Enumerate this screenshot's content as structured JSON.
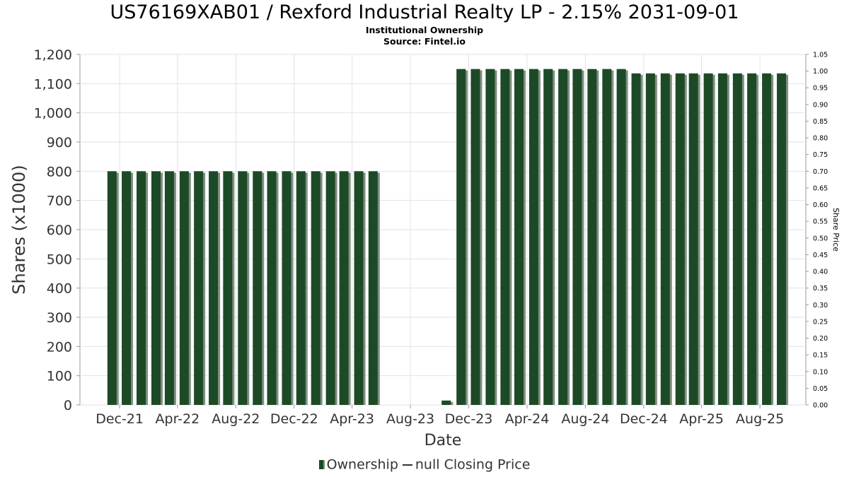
{
  "header": {
    "title": "US76169XAB01 / Rexford Industrial Realty LP - 2.15% 2031-09-01",
    "subtitle1": "Institutional Ownership",
    "subtitle2": "Source: Fintel.io"
  },
  "legend": {
    "ownership_label": "Ownership",
    "price_label": "null Closing Price"
  },
  "colors": {
    "bar": "#1d4a26",
    "bar_shadow": "#7f8f82",
    "grid": "#e2e2e2",
    "axis_text": "#333333"
  },
  "chart_data": {
    "type": "bar",
    "title": "US76169XAB01 / Rexford Industrial Realty LP - 2.15% 2031-09-01",
    "subtitle": "Institutional Ownership",
    "xlabel": "Date",
    "ylabel": "Shares (x1000)",
    "y2label": "Share Price",
    "ylim": [
      0,
      1200
    ],
    "y2lim": [
      0,
      1.05
    ],
    "yticks": [
      "0",
      "100",
      "200",
      "300",
      "400",
      "500",
      "600",
      "700",
      "800",
      "900",
      "1,000",
      "1,100",
      "1,200"
    ],
    "y2ticks": [
      "0.00",
      "0.05",
      "0.10",
      "0.15",
      "0.20",
      "0.25",
      "0.30",
      "0.35",
      "0.40",
      "0.45",
      "0.50",
      "0.55",
      "0.60",
      "0.65",
      "0.70",
      "0.75",
      "0.80",
      "0.85",
      "0.90",
      "0.95",
      "1.00",
      "1.05"
    ],
    "xticks": [
      "Dec-21",
      "Apr-22",
      "Aug-22",
      "Dec-22",
      "Apr-23",
      "Aug-23",
      "Dec-23",
      "Apr-24",
      "Aug-24",
      "Dec-24",
      "Apr-25",
      "Aug-25"
    ],
    "xlim": [
      "2021-09-09",
      "2025-11-05"
    ],
    "grid": true,
    "legend_position": "bottom",
    "series": [
      {
        "name": "Ownership",
        "x": [
          "2021-11-15",
          "2021-12-15",
          "2022-01-15",
          "2022-02-15",
          "2022-03-15",
          "2022-04-15",
          "2022-05-15",
          "2022-06-15",
          "2022-07-15",
          "2022-08-15",
          "2022-09-15",
          "2022-10-15",
          "2022-11-15",
          "2022-12-15",
          "2023-01-15",
          "2023-02-15",
          "2023-03-15",
          "2023-04-15",
          "2023-05-15",
          "2023-10-15",
          "2023-11-15",
          "2023-12-15",
          "2024-01-15",
          "2024-02-15",
          "2024-03-15",
          "2024-04-15",
          "2024-05-15",
          "2024-06-15",
          "2024-07-15",
          "2024-08-15",
          "2024-09-15",
          "2024-10-15",
          "2024-11-15",
          "2024-12-15",
          "2025-01-15",
          "2025-02-15",
          "2025-03-15",
          "2025-04-15",
          "2025-05-15",
          "2025-06-15",
          "2025-07-15",
          "2025-08-15",
          "2025-09-15"
        ],
        "values": [
          800,
          800,
          800,
          800,
          800,
          800,
          800,
          800,
          800,
          800,
          800,
          800,
          800,
          800,
          800,
          800,
          800,
          800,
          800,
          15,
          1150,
          1150,
          1150,
          1150,
          1150,
          1150,
          1150,
          1150,
          1150,
          1150,
          1150,
          1150,
          1135,
          1135,
          1135,
          1135,
          1135,
          1135,
          1135,
          1135,
          1135,
          1135,
          1135
        ]
      }
    ]
  }
}
